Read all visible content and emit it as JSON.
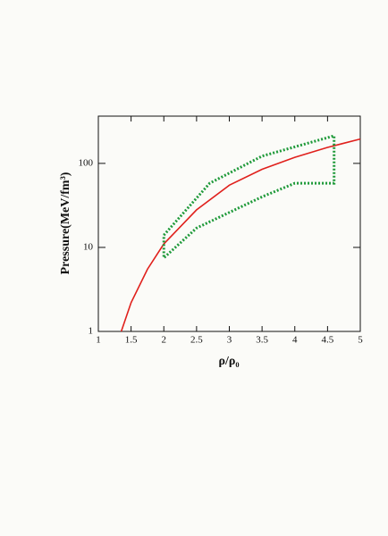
{
  "chart_data": {
    "type": "line",
    "xlabel": "ρ/ρ₀",
    "ylabel": "Pressure(MeV/fm³)",
    "xlim": [
      1,
      5
    ],
    "xticks": [
      1,
      1.5,
      2,
      2.5,
      3,
      3.5,
      4,
      4.5,
      5
    ],
    "ylim": [
      1,
      365
    ],
    "yticks": [
      1,
      10,
      100
    ],
    "ylog": true,
    "series": [
      {
        "color": "#e0201c",
        "style": "solid",
        "x": [
          1.35,
          1.5,
          1.75,
          2,
          2.5,
          3,
          3.5,
          4,
          4.5,
          5
        ],
        "values": [
          1,
          2.2,
          5.5,
          11,
          28,
          55,
          85,
          118,
          155,
          195
        ]
      },
      {
        "color": "#1f9a3a",
        "style": "dotted",
        "x": [
          2,
          2.7,
          3.5,
          4.6,
          4.6,
          4,
          3.5,
          2.5,
          2,
          2
        ],
        "values": [
          14,
          58,
          122,
          213,
          58,
          58,
          40,
          17,
          7.5,
          14
        ]
      }
    ]
  }
}
